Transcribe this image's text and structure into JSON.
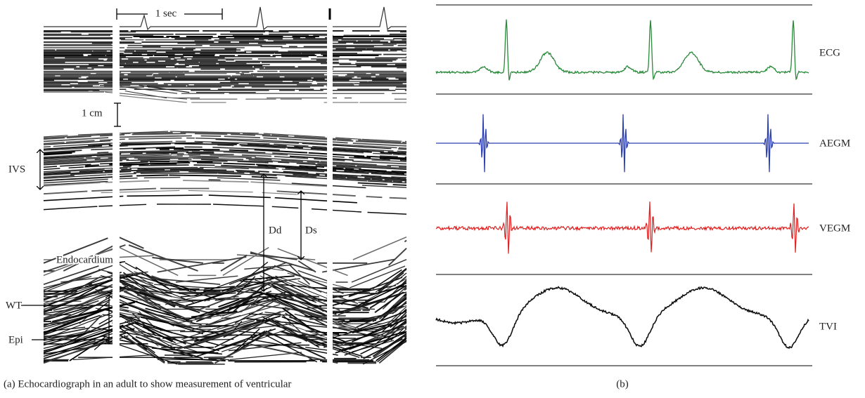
{
  "panel_a": {
    "labels": {
      "time_scale": "1 sec",
      "distance_scale": "1 cm",
      "ivs": "IVS",
      "dd": "Dd",
      "ds": "Ds",
      "endocardium": "Endocardium",
      "wt": "WT",
      "epi": "Epi"
    },
    "caption": "(a)  Echocardiograph in an adult to show measurement of ventricular"
  },
  "panel_b": {
    "traces": [
      "ECG",
      "AEGM",
      "VEGM",
      "TVI"
    ],
    "caption": "(b)"
  }
}
